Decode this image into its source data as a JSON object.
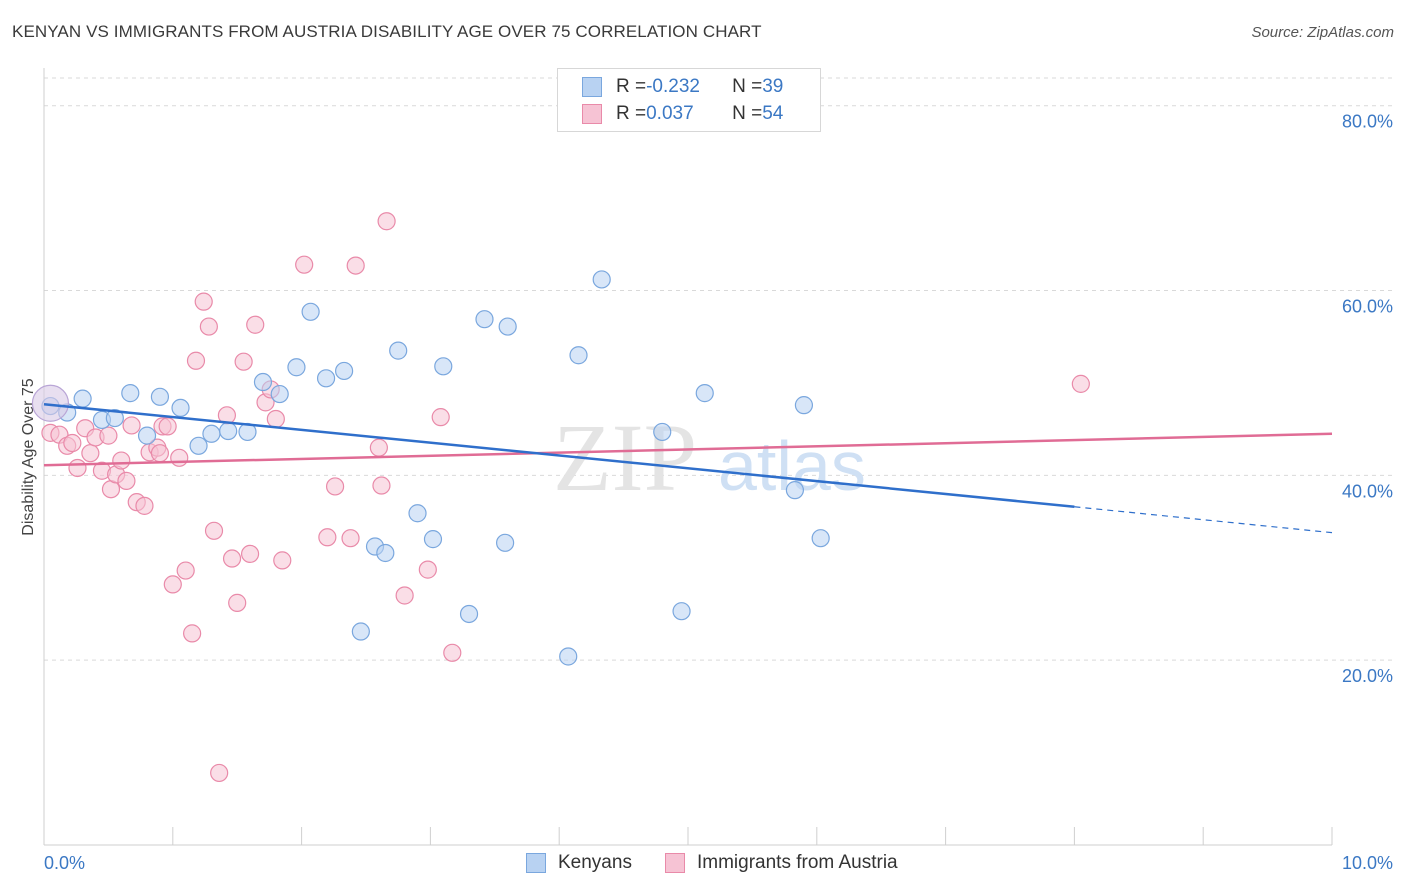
{
  "title": "KENYAN VS IMMIGRANTS FROM AUSTRIA DISABILITY AGE OVER 75 CORRELATION CHART",
  "source": "Source: ZipAtlas.com",
  "watermark": {
    "zip": "ZIP",
    "atlas": "atlas"
  },
  "legend": {
    "rows": [
      {
        "r_label": "R = ",
        "r_value": "-0.232",
        "n_label": "N = ",
        "n_value": "39"
      },
      {
        "r_label": "R = ",
        "r_value": "0.037",
        "n_label": "N = ",
        "n_value": "54"
      }
    ]
  },
  "bottom_legend": [
    "Kenyans",
    "Immigrants from Austria"
  ],
  "colors": {
    "blue_fill": "#b8d2f2",
    "blue_stroke": "#7aa7de",
    "blue_line": "#2f6fcb",
    "pink_fill": "#f6c3d4",
    "pink_stroke": "#e98aa9",
    "pink_line": "#e06c95",
    "tick_text": "#3b78c4",
    "grid": "#d9d9d9"
  },
  "chart_data": {
    "type": "scatter",
    "title": "KENYAN VS IMMIGRANTS FROM AUSTRIA DISABILITY AGE OVER 75 CORRELATION CHART",
    "xlabel": "",
    "ylabel": "Disability Age Over 75",
    "xlim": [
      0,
      10
    ],
    "ylim": [
      0,
      83
    ],
    "x_tick_labels": [
      "0.0%",
      "10.0%"
    ],
    "y_ticks": [
      20,
      40,
      60,
      80
    ],
    "y_tick_labels": [
      "20.0%",
      "40.0%",
      "60.0%",
      "80.0%"
    ],
    "grid": "horizontal dashed",
    "legend_position": "top-center",
    "series": [
      {
        "name": "Kenyans",
        "color": "blue",
        "points": [
          [
            0.05,
            47.5
          ],
          [
            0.18,
            46.8
          ],
          [
            0.3,
            48.3
          ],
          [
            0.45,
            46.0
          ],
          [
            0.55,
            46.2
          ],
          [
            0.67,
            48.9
          ],
          [
            0.8,
            44.3
          ],
          [
            0.9,
            48.5
          ],
          [
            1.06,
            47.3
          ],
          [
            1.2,
            43.2
          ],
          [
            1.3,
            44.5
          ],
          [
            1.43,
            44.8
          ],
          [
            1.58,
            44.7
          ],
          [
            1.7,
            50.1
          ],
          [
            1.83,
            48.8
          ],
          [
            1.96,
            51.7
          ],
          [
            2.07,
            57.7
          ],
          [
            2.19,
            50.5
          ],
          [
            2.33,
            51.3
          ],
          [
            2.46,
            23.1
          ],
          [
            2.57,
            32.3
          ],
          [
            2.65,
            31.6
          ],
          [
            2.75,
            53.5
          ],
          [
            2.9,
            35.9
          ],
          [
            3.02,
            33.1
          ],
          [
            3.1,
            51.8
          ],
          [
            3.3,
            25.0
          ],
          [
            3.42,
            56.9
          ],
          [
            3.58,
            32.7
          ],
          [
            3.6,
            56.1
          ],
          [
            4.07,
            20.4
          ],
          [
            4.15,
            53.0
          ],
          [
            4.33,
            61.2
          ],
          [
            4.8,
            44.7
          ],
          [
            4.95,
            25.3
          ],
          [
            5.13,
            48.9
          ],
          [
            5.83,
            38.4
          ],
          [
            5.9,
            47.6
          ],
          [
            6.03,
            33.2
          ]
        ],
        "trend": {
          "x": [
            0,
            8.0
          ],
          "y": [
            47.7,
            36.6
          ],
          "dashed_extension": {
            "x": [
              8.0,
              10.0
            ],
            "y": [
              36.6,
              33.8
            ]
          }
        }
      },
      {
        "name": "Immigrants from Austria",
        "color": "pink",
        "points": [
          [
            0.05,
            44.6
          ],
          [
            0.12,
            44.4
          ],
          [
            0.18,
            43.2
          ],
          [
            0.22,
            43.5
          ],
          [
            0.26,
            40.8
          ],
          [
            0.32,
            45.1
          ],
          [
            0.36,
            42.4
          ],
          [
            0.4,
            44.1
          ],
          [
            0.45,
            40.5
          ],
          [
            0.5,
            44.3
          ],
          [
            0.52,
            38.5
          ],
          [
            0.56,
            40.1
          ],
          [
            0.6,
            41.6
          ],
          [
            0.64,
            39.4
          ],
          [
            0.68,
            45.4
          ],
          [
            0.72,
            37.1
          ],
          [
            0.78,
            36.7
          ],
          [
            0.82,
            42.5
          ],
          [
            0.88,
            43.0
          ],
          [
            0.92,
            45.3
          ],
          [
            0.96,
            45.3
          ],
          [
            1.0,
            28.2
          ],
          [
            1.05,
            41.9
          ],
          [
            1.1,
            29.7
          ],
          [
            1.15,
            22.9
          ],
          [
            1.18,
            52.4
          ],
          [
            1.24,
            58.8
          ],
          [
            1.28,
            56.1
          ],
          [
            1.32,
            34.0
          ],
          [
            1.36,
            7.8
          ],
          [
            1.42,
            46.5
          ],
          [
            1.46,
            31.0
          ],
          [
            1.5,
            26.2
          ],
          [
            1.55,
            52.3
          ],
          [
            1.6,
            31.5
          ],
          [
            1.64,
            56.3
          ],
          [
            1.72,
            47.9
          ],
          [
            1.76,
            49.3
          ],
          [
            1.8,
            46.1
          ],
          [
            1.85,
            30.8
          ],
          [
            2.02,
            62.8
          ],
          [
            2.2,
            33.3
          ],
          [
            2.26,
            38.8
          ],
          [
            2.38,
            33.2
          ],
          [
            2.42,
            62.7
          ],
          [
            2.6,
            43.0
          ],
          [
            2.62,
            38.9
          ],
          [
            2.66,
            67.5
          ],
          [
            2.8,
            27.0
          ],
          [
            2.98,
            29.8
          ],
          [
            3.08,
            46.3
          ],
          [
            3.17,
            20.8
          ],
          [
            8.05,
            49.9
          ],
          [
            0.9,
            42.4
          ]
        ],
        "trend": {
          "x": [
            0,
            10.0
          ],
          "y": [
            41.1,
            44.5
          ]
        }
      }
    ]
  }
}
